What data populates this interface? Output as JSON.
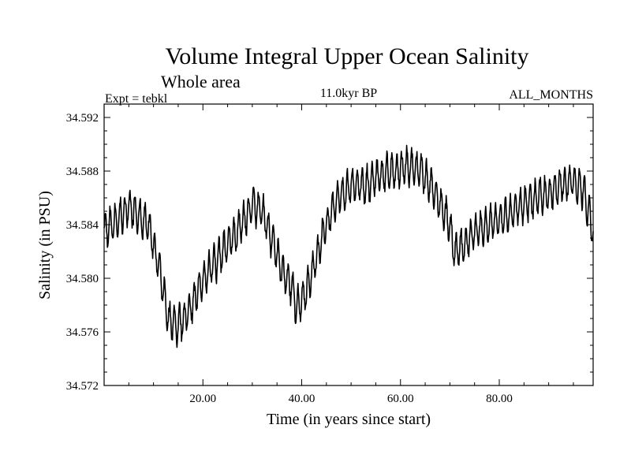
{
  "chart_data": {
    "type": "line",
    "title": "Volume Integral Upper Ocean Salinity",
    "subtitle": "Whole area",
    "annotations": {
      "left": "Expt = tebkl",
      "center": "11.0kyr BP",
      "right": "ALL_MONTHS"
    },
    "xlabel": "Time (in years since start)",
    "ylabel": "Salinity (in PSU)",
    "xlim": [
      0,
      99
    ],
    "ylim": [
      34.572,
      34.593
    ],
    "x_ticks": [
      20,
      40,
      60,
      80
    ],
    "x_tick_labels": [
      "20.00",
      "40.00",
      "60.00",
      "80.00"
    ],
    "y_ticks": [
      34.572,
      34.576,
      34.58,
      34.584,
      34.588,
      34.592
    ],
    "y_tick_labels": [
      "34.572",
      "34.576",
      "34.580",
      "34.584",
      "34.588",
      "34.592"
    ],
    "grid": false,
    "legend": "none",
    "series": [
      {
        "name": "Salinity",
        "color": "#000000",
        "seasonal_amplitude_psu": 0.0012,
        "x": [
          0,
          3,
          5,
          7,
          9,
          11,
          13,
          15,
          17,
          19,
          21,
          23,
          25,
          27,
          29,
          30,
          32,
          34,
          36,
          38,
          39,
          41,
          43,
          45,
          47,
          49,
          51,
          53,
          55,
          57,
          59,
          61,
          62,
          64,
          66,
          68,
          70,
          71,
          73,
          75,
          77,
          79,
          81,
          83,
          85,
          87,
          89,
          91,
          93,
          95,
          97,
          99
        ],
        "values": [
          34.5835,
          34.5845,
          34.5853,
          34.5846,
          34.584,
          34.581,
          34.577,
          34.5765,
          34.5775,
          34.579,
          34.5805,
          34.5815,
          34.5825,
          34.5835,
          34.5848,
          34.5855,
          34.585,
          34.583,
          34.5805,
          34.5795,
          34.5778,
          34.579,
          34.5815,
          34.584,
          34.5858,
          34.5865,
          34.587,
          34.5868,
          34.5875,
          34.5878,
          34.588,
          34.5883,
          34.5884,
          34.588,
          34.587,
          34.5855,
          34.584,
          34.5818,
          34.5825,
          34.5835,
          34.5838,
          34.5842,
          34.5845,
          34.5852,
          34.5856,
          34.5858,
          34.5862,
          34.5866,
          34.587,
          34.5872,
          34.5865,
          34.5835
        ]
      }
    ]
  }
}
